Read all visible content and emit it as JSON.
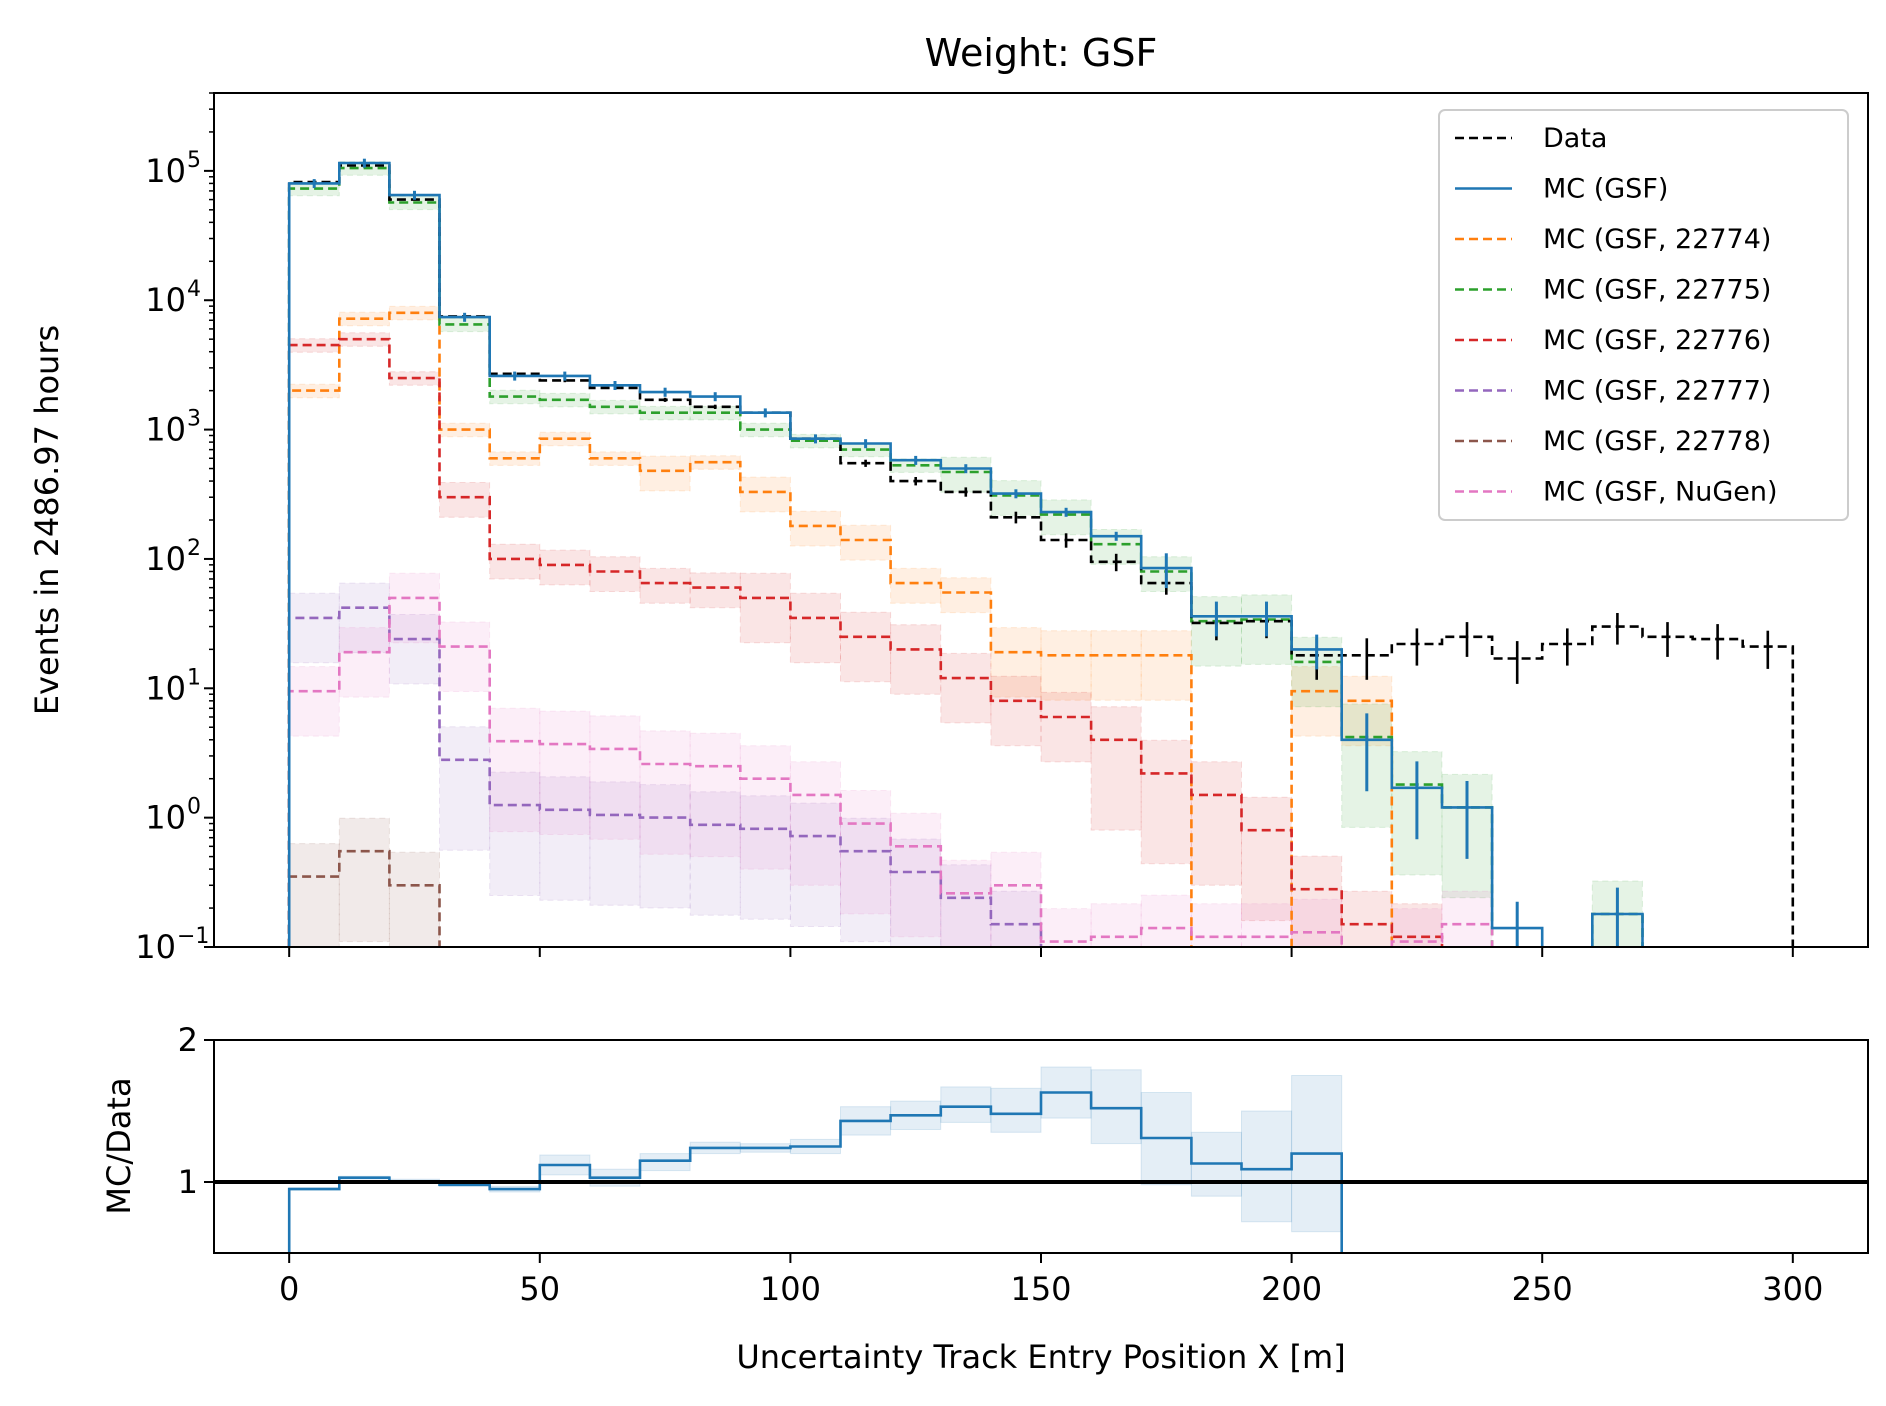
{
  "chart_data": [
    {
      "type": "line",
      "subtype": "step-histogram",
      "title": "Weight: GSF",
      "xlabel": "",
      "ylabel": "Events in 2486.97 hours",
      "yscale": "log",
      "ylim": [
        0.1,
        400000
      ],
      "xlim": [
        -15,
        315
      ],
      "y_ticks": [
        {
          "value": 0.1,
          "base": "10",
          "exp": "−1"
        },
        {
          "value": 1,
          "base": "10",
          "exp": "0"
        },
        {
          "value": 10,
          "base": "10",
          "exp": "1"
        },
        {
          "value": 100,
          "base": "10",
          "exp": "2"
        },
        {
          "value": 1000,
          "base": "10",
          "exp": "3"
        },
        {
          "value": 10000,
          "base": "10",
          "exp": "4"
        },
        {
          "value": 100000,
          "base": "10",
          "exp": "5"
        }
      ],
      "x_ticks": [
        0,
        50,
        100,
        150,
        200,
        250,
        300
      ],
      "x_tick_labels_shown": false,
      "grid": false,
      "legend_position": "top-right",
      "bin_edges": [
        0,
        10,
        20,
        30,
        40,
        50,
        60,
        70,
        80,
        90,
        100,
        110,
        120,
        130,
        140,
        150,
        160,
        170,
        180,
        190,
        200,
        210,
        220,
        230,
        240,
        250,
        260,
        270,
        280,
        290,
        300
      ],
      "series": [
        {
          "name": "Data",
          "color": "#000000",
          "dashed": true,
          "values": [
            82000,
            110000,
            60000,
            7500,
            2700,
            2400,
            2100,
            1700,
            1500,
            1350,
            850,
            550,
            400,
            330,
            210,
            140,
            95,
            65,
            32,
            33,
            18,
            18,
            22,
            25,
            17,
            22,
            30,
            25,
            24,
            21
          ]
        },
        {
          "name": "MC (GSF)",
          "color": "#1f77b4",
          "dashed": false,
          "values": [
            80000,
            115000,
            65000,
            7400,
            2600,
            2600,
            2200,
            1950,
            1800,
            1350,
            850,
            780,
            580,
            500,
            320,
            230,
            150,
            85,
            36,
            36,
            20,
            4,
            1.7,
            1.2,
            0.14,
            0.05,
            0.18,
            null,
            null,
            null
          ]
        },
        {
          "name": "MC (GSF, 22774)",
          "color": "#ff7f0e",
          "dashed": true,
          "values": [
            2000,
            7200,
            8000,
            1000,
            600,
            850,
            600,
            480,
            560,
            330,
            180,
            140,
            65,
            55,
            19,
            18,
            18,
            18,
            null,
            null,
            9.5,
            8,
            null,
            null,
            null,
            null,
            null,
            null,
            null,
            null
          ]
        },
        {
          "name": "MC (GSF, 22775)",
          "color": "#2ca02c",
          "dashed": true,
          "values": [
            73000,
            105000,
            57000,
            6500,
            1800,
            1700,
            1500,
            1350,
            1350,
            1000,
            820,
            700,
            530,
            470,
            310,
            220,
            130,
            80,
            33,
            34,
            16,
            4.2,
            1.8,
            1.2,
            null,
            null,
            0.18,
            null,
            null,
            null
          ]
        },
        {
          "name": "MC (GSF, 22776)",
          "color": "#d62728",
          "dashed": true,
          "values": [
            4500,
            5000,
            2500,
            300,
            100,
            90,
            80,
            65,
            60,
            50,
            35,
            25,
            20,
            12,
            8,
            6,
            4,
            2.2,
            1.5,
            0.8,
            0.28,
            0.15,
            0.12,
            null,
            null,
            null,
            null,
            null,
            null,
            null
          ]
        },
        {
          "name": "MC (GSF, 22777)",
          "color": "#9467bd",
          "dashed": true,
          "values": [
            35,
            42,
            24,
            2.8,
            1.25,
            1.15,
            1.05,
            1.0,
            0.88,
            0.82,
            0.72,
            0.55,
            0.38,
            0.24,
            0.15,
            null,
            null,
            null,
            null,
            null,
            null,
            null,
            null,
            null,
            null,
            null,
            null,
            null,
            null,
            null
          ]
        },
        {
          "name": "MC (GSF, 22778)",
          "color": "#8c564b",
          "dashed": true,
          "values": [
            0.35,
            0.55,
            0.3,
            null,
            null,
            null,
            null,
            null,
            null,
            null,
            null,
            null,
            null,
            null,
            null,
            null,
            null,
            null,
            null,
            null,
            null,
            null,
            null,
            null,
            null,
            null,
            null,
            null,
            null,
            null
          ]
        },
        {
          "name": "MC (GSF, NuGen)",
          "color": "#e377c2",
          "dashed": true,
          "values": [
            9.5,
            19,
            50,
            21,
            3.9,
            3.7,
            3.4,
            2.6,
            2.5,
            2.0,
            1.5,
            0.9,
            0.6,
            0.26,
            0.3,
            0.11,
            0.12,
            0.14,
            0.12,
            0.12,
            0.13,
            null,
            0.11,
            0.15,
            null,
            null,
            null,
            null,
            null,
            null
          ]
        }
      ]
    },
    {
      "type": "line",
      "subtype": "step-ratio",
      "xlabel": "Uncertainty Track Entry Position X [m]",
      "ylabel": "MC/Data",
      "ylim": [
        0.5,
        2
      ],
      "xlim": [
        -15,
        315
      ],
      "y_ticks": [
        {
          "value": 1,
          "label": "1"
        },
        {
          "value": 2,
          "label": "2"
        }
      ],
      "x_ticks": [
        0,
        50,
        100,
        150,
        200,
        250,
        300
      ],
      "x_tick_labels": [
        "0",
        "50",
        "100",
        "150",
        "200",
        "250",
        "300"
      ],
      "reference_line": 1,
      "bin_edges": [
        0,
        10,
        20,
        30,
        40,
        50,
        60,
        70,
        80,
        90,
        100,
        110,
        120,
        130,
        140,
        150,
        160,
        170,
        180,
        190,
        200,
        210,
        217
      ],
      "series": [
        {
          "name": "MC/Data",
          "color": "#1f77b4",
          "values": [
            0.95,
            1.03,
            1.0,
            0.98,
            0.95,
            1.12,
            1.03,
            1.15,
            1.24,
            1.24,
            1.25,
            1.43,
            1.47,
            1.53,
            1.48,
            1.63,
            1.52,
            1.31,
            1.13,
            1.09,
            1.2,
            null
          ],
          "band_low": [
            0.95,
            1.02,
            0.99,
            0.97,
            0.93,
            1.05,
            0.97,
            1.08,
            1.2,
            1.21,
            1.2,
            1.33,
            1.37,
            1.42,
            1.35,
            1.45,
            1.27,
            0.98,
            0.9,
            0.72,
            0.65,
            null
          ],
          "band_high": [
            0.96,
            1.04,
            1.02,
            0.99,
            0.97,
            1.19,
            1.09,
            1.2,
            1.28,
            1.27,
            1.3,
            1.53,
            1.57,
            1.67,
            1.66,
            1.81,
            1.79,
            1.63,
            1.35,
            1.5,
            1.75,
            null
          ]
        }
      ]
    }
  ]
}
